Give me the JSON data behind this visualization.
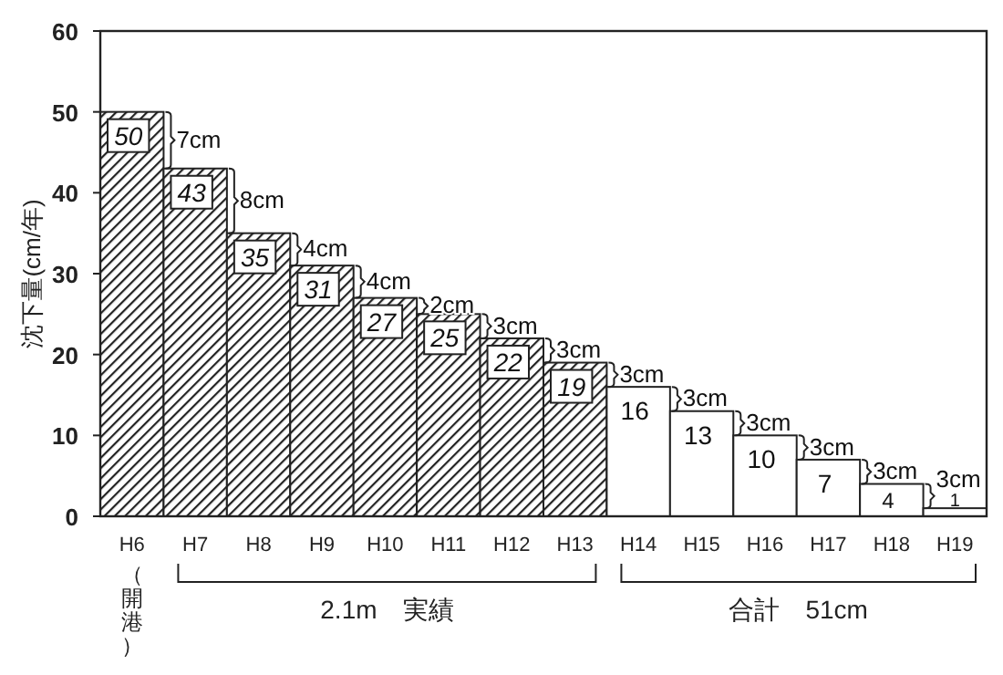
{
  "chart_data": {
    "type": "bar",
    "ylabel": "沈下量(cm/年)",
    "categories": [
      "H6",
      "H7",
      "H8",
      "H9",
      "H10",
      "H11",
      "H12",
      "H13",
      "H14",
      "H15",
      "H16",
      "H17",
      "H18",
      "H19"
    ],
    "values": [
      50,
      43,
      35,
      31,
      27,
      25,
      22,
      19,
      16,
      13,
      10,
      7,
      4,
      1
    ],
    "colors": [
      "#222222",
      "#222222",
      "#222222",
      "#222222",
      "#222222",
      "#222222",
      "#222222",
      "#222222",
      "#ffffff",
      "#ffffff",
      "#ffffff",
      "#ffffff",
      "#ffffff",
      "#ffffff"
    ],
    "data_labels": true,
    "ylim": [
      0,
      60
    ],
    "yticks": [
      0,
      10,
      20,
      30,
      40,
      50,
      60
    ],
    "annotations": [
      "7cm",
      "8cm",
      "4cm",
      "4cm",
      "2cm",
      "3cm",
      "3cm",
      "3cm",
      "3cm",
      "3cm",
      "3cm",
      "3cm",
      "3cm",
      "（開港）",
      "2.1m　実績",
      "合計　51cm"
    ]
  }
}
